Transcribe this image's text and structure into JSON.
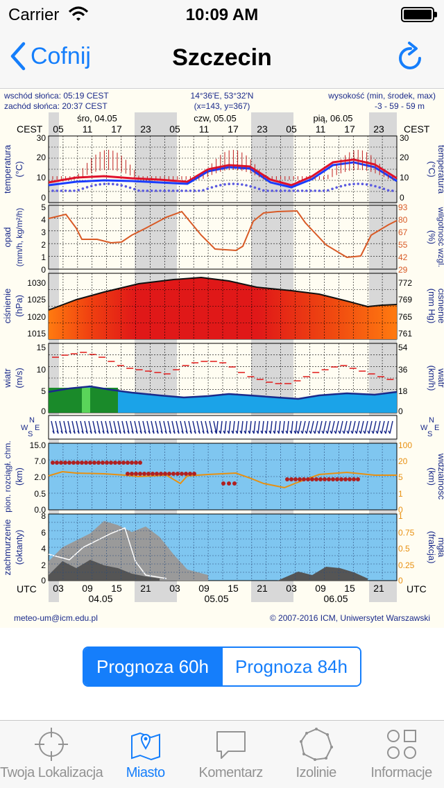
{
  "status_bar": {
    "carrier": "Carrier",
    "time": "10:09 AM"
  },
  "nav": {
    "back_label": "Cofnij",
    "title": "Szczecin"
  },
  "meteogram": {
    "sunrise": "wschód słońca: 05:19 CEST",
    "sunset": "zachód słońca: 20:37 CEST",
    "coords": "14°36'E, 53°32'N",
    "grid": "(x=143, y=367)",
    "elevation_label": "wysokość (min, środek, max)",
    "elevation_values": "-3 - 59 - 59 m",
    "tz_label": "CEST",
    "utc_label": "UTC",
    "days_top": [
      "śro, 04.05",
      "czw, 05.05",
      "pią, 06.05"
    ],
    "hours_top": [
      "05",
      "11",
      "17",
      "23",
      "05",
      "11",
      "17",
      "23",
      "05",
      "11",
      "17",
      "23"
    ],
    "hours_bottom": [
      "03",
      "09",
      "15",
      "21",
      "03",
      "09",
      "15",
      "21",
      "03",
      "09",
      "15",
      "21"
    ],
    "days_bottom": [
      "04.05",
      "05.05",
      "06.05"
    ],
    "panel_labels": {
      "temp_l1": "temperatura",
      "temp_l2": "(°C)",
      "precip_l1": "opad",
      "precip_l2": "(mm/h, kg/m²/h)",
      "humid_l1": "wilgotność wzgl.",
      "humid_l2": "(%)",
      "press_l1": "ciśnienie",
      "press_l2": "(hPa)",
      "press_r2": "(mm Hg)",
      "wind_l1": "wiatr",
      "wind_l2": "(m/s)",
      "wind_r2": "(km/h)",
      "cloud_l1": "pion. rozciągł. chm.",
      "cloud_l2": "(km)",
      "vis_l1": "widzialność",
      "vis_l2": "(km)",
      "cover_l1": "zachmurzenie",
      "cover_l2": "(oktanty)",
      "fog_l1": "mgła",
      "fog_l2": "(frakcja)"
    },
    "ticks": {
      "temp": [
        "30",
        "20",
        "10",
        "0"
      ],
      "precip": [
        "5",
        "4",
        "3",
        "2",
        "1",
        "0"
      ],
      "humid": [
        "93",
        "80",
        "67",
        "55",
        "42",
        "29"
      ],
      "press_l": [
        "1030",
        "1025",
        "1020",
        "1015"
      ],
      "press_r": [
        "772",
        "769",
        "765",
        "761"
      ],
      "wind_l": [
        "15",
        "10",
        "5",
        "0"
      ],
      "wind_r": [
        "54",
        "36",
        "18",
        "0"
      ],
      "cloud_l": [
        "15.0",
        "7.0",
        "2.0",
        "0.5",
        "0.0"
      ],
      "cloud_r": [
        "100",
        "20",
        "5",
        "1",
        "0"
      ],
      "cover_l": [
        "8",
        "6",
        "4",
        "2",
        "0"
      ],
      "cover_r": [
        "1",
        "0.75",
        "0.5",
        "0.25",
        "0"
      ]
    },
    "footer_left": "meteo-um@icm.edu.pl",
    "footer_right": "© 2007-2016 ICM, Uniwersytet Warszawski",
    "compass": {
      "w": "W",
      "s": "S",
      "n": "N",
      "e": "E"
    },
    "colors": {
      "temp": "#e0102a",
      "dew": "#1a3cff",
      "precip_humid": "#d85a26",
      "pressure_top": "#b01010",
      "wind": "#1a2a8a"
    }
  },
  "segments": {
    "left": "Prognoza 60h",
    "right": "Prognoza 84h",
    "selected": "Prognoza 60h"
  },
  "tabs": [
    {
      "label": "Twoja Lokalizacja",
      "icon": "crosshair-icon"
    },
    {
      "label": "Miasto",
      "icon": "map-pin-icon"
    },
    {
      "label": "Komentarz",
      "icon": "speech-bubble-icon"
    },
    {
      "label": "Izolinie",
      "icon": "isoline-icon"
    },
    {
      "label": "Informacje",
      "icon": "grid-shapes-icon"
    }
  ],
  "active_tab": "Miasto"
}
